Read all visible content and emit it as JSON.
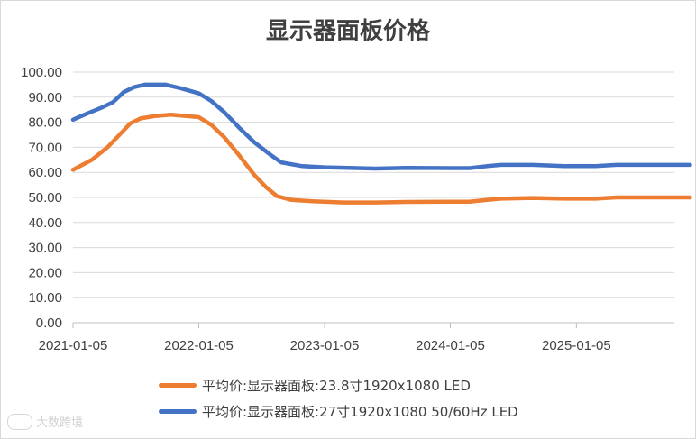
{
  "chart_data": {
    "type": "line",
    "title": "显示器面板价格",
    "xlabel": "",
    "ylabel": "",
    "ylim": [
      0,
      100
    ],
    "y_ticks": [
      "0.00",
      "10.00",
      "20.00",
      "30.00",
      "40.00",
      "50.00",
      "60.00",
      "70.00",
      "80.00",
      "90.00",
      "100.00"
    ],
    "x_ticks": [
      "2021-01-05",
      "2022-01-05",
      "2023-01-05",
      "2024-01-05",
      "2025-01-05"
    ],
    "grid": true,
    "legend_position": "bottom",
    "series": [
      {
        "name": "平均价:显示器面板:23.8寸1920x1080 LED",
        "color": "#ED7D31",
        "points": [
          [
            "2021-01-05",
            61
          ],
          [
            "2021-03-01",
            65
          ],
          [
            "2021-04-15",
            70
          ],
          [
            "2021-05-20",
            75
          ],
          [
            "2021-06-20",
            79.5
          ],
          [
            "2021-07-20",
            81.5
          ],
          [
            "2021-09-01",
            82.5
          ],
          [
            "2021-10-15",
            83
          ],
          [
            "2021-12-01",
            82.5
          ],
          [
            "2022-01-05",
            82
          ],
          [
            "2022-02-10",
            79
          ],
          [
            "2022-03-20",
            74
          ],
          [
            "2022-05-01",
            67
          ],
          [
            "2022-06-15",
            59
          ],
          [
            "2022-07-20",
            54
          ],
          [
            "2022-08-20",
            50.5
          ],
          [
            "2022-10-01",
            49
          ],
          [
            "2022-12-01",
            48.5
          ],
          [
            "2023-03-01",
            48
          ],
          [
            "2023-06-01",
            48
          ],
          [
            "2023-09-01",
            48.2
          ],
          [
            "2024-01-05",
            48.3
          ],
          [
            "2024-03-01",
            48.3
          ],
          [
            "2024-04-20",
            49
          ],
          [
            "2024-06-01",
            49.5
          ],
          [
            "2024-09-01",
            49.8
          ],
          [
            "2024-12-01",
            49.5
          ],
          [
            "2025-03-01",
            49.5
          ],
          [
            "2025-05-01",
            50
          ],
          [
            "2025-08-01",
            50
          ],
          [
            "2025-12-01",
            50
          ]
        ]
      },
      {
        "name": "平均价:显示器面板:27寸1920x1080 50/60Hz LED",
        "color": "#4472C4",
        "points": [
          [
            "2021-01-05",
            81
          ],
          [
            "2021-02-15",
            83.5
          ],
          [
            "2021-04-01",
            86
          ],
          [
            "2021-05-01",
            88
          ],
          [
            "2021-06-01",
            92
          ],
          [
            "2021-07-01",
            94
          ],
          [
            "2021-08-01",
            95
          ],
          [
            "2021-10-01",
            95
          ],
          [
            "2021-11-15",
            93.5
          ],
          [
            "2022-01-05",
            91.5
          ],
          [
            "2022-02-10",
            88.5
          ],
          [
            "2022-03-20",
            84
          ],
          [
            "2022-05-01",
            78
          ],
          [
            "2022-06-15",
            72
          ],
          [
            "2022-08-01",
            67
          ],
          [
            "2022-09-01",
            64
          ],
          [
            "2022-11-01",
            62.5
          ],
          [
            "2023-01-05",
            62
          ],
          [
            "2023-06-01",
            61.5
          ],
          [
            "2023-09-01",
            61.8
          ],
          [
            "2024-01-05",
            61.7
          ],
          [
            "2024-03-01",
            61.7
          ],
          [
            "2024-04-20",
            62.5
          ],
          [
            "2024-06-01",
            63
          ],
          [
            "2024-09-01",
            63
          ],
          [
            "2024-12-01",
            62.5
          ],
          [
            "2025-03-01",
            62.5
          ],
          [
            "2025-05-01",
            63
          ],
          [
            "2025-08-01",
            63
          ],
          [
            "2025-12-01",
            63
          ]
        ]
      }
    ]
  },
  "watermark": "大数跨境"
}
